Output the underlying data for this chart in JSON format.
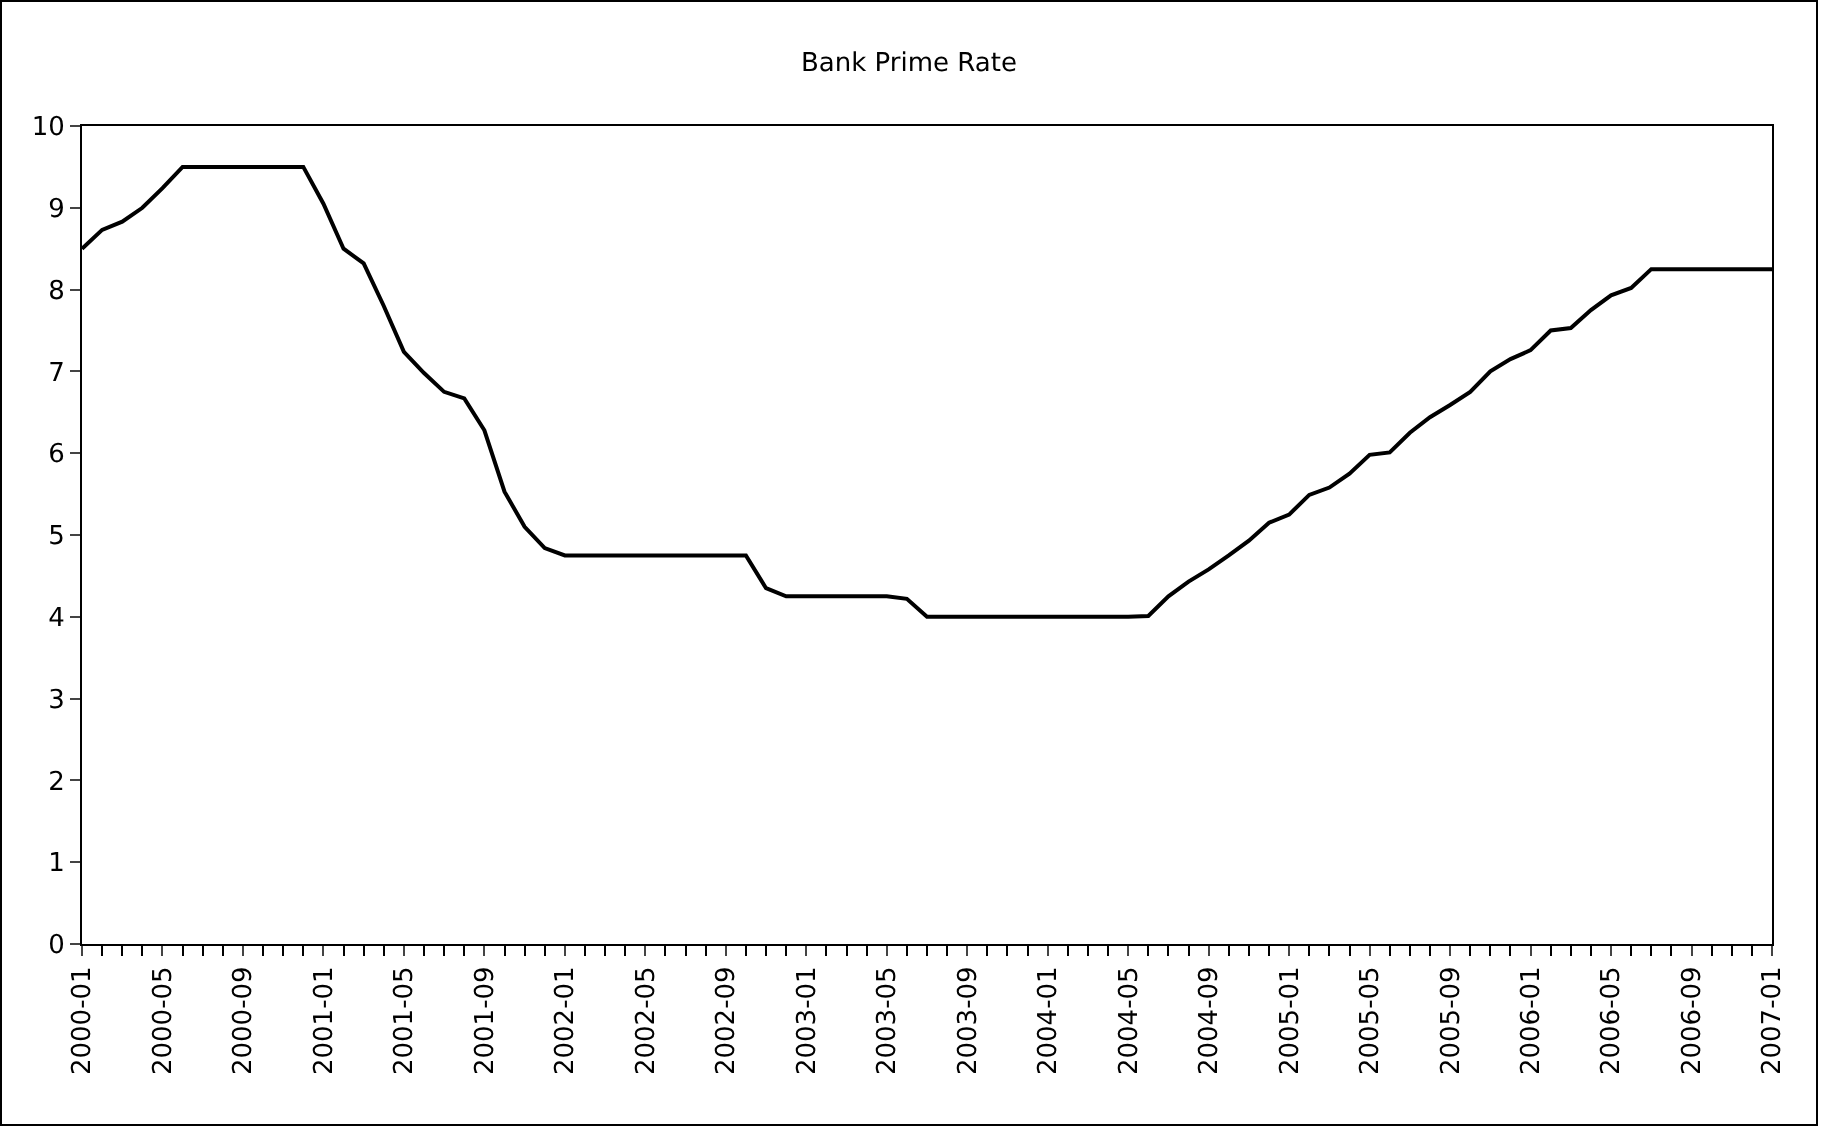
{
  "chart_data": {
    "type": "line",
    "title": "Bank Prime Rate",
    "categories": [
      "2000-01",
      null,
      null,
      null,
      "2000-05",
      null,
      null,
      null,
      "2000-09",
      null,
      null,
      null,
      "2001-01",
      null,
      null,
      null,
      "2001-05",
      null,
      null,
      null,
      "2001-09",
      null,
      null,
      null,
      "2002-01",
      null,
      null,
      null,
      "2002-05",
      null,
      null,
      null,
      "2002-09",
      null,
      null,
      null,
      "2003-01",
      null,
      null,
      null,
      "2003-05",
      null,
      null,
      null,
      "2003-09",
      null,
      null,
      null,
      "2004-01",
      null,
      null,
      null,
      "2004-05",
      null,
      null,
      null,
      "2004-09",
      null,
      null,
      null,
      "2005-01",
      null,
      null,
      null,
      "2005-05",
      null,
      null,
      null,
      "2005-09",
      null,
      null,
      null,
      "2006-01",
      null,
      null,
      null,
      "2006-05",
      null,
      null,
      null,
      "2006-09",
      null,
      null,
      null,
      "2007-01"
    ],
    "series": [
      {
        "color": "#000000",
        "values": [
          8.5,
          8.73,
          8.83,
          9.0,
          9.24,
          9.5,
          9.5,
          9.5,
          9.5,
          9.5,
          9.5,
          9.5,
          9.05,
          8.5,
          8.32,
          7.8,
          7.24,
          6.98,
          6.75,
          6.67,
          6.28,
          5.53,
          5.1,
          4.84,
          4.75,
          4.75,
          4.75,
          4.75,
          4.75,
          4.75,
          4.75,
          4.75,
          4.75,
          4.75,
          4.35,
          4.25,
          4.25,
          4.25,
          4.25,
          4.25,
          4.25,
          4.22,
          4.0,
          4.0,
          4.0,
          4.0,
          4.0,
          4.0,
          4.0,
          4.0,
          4.0,
          4.0,
          4.0,
          4.01,
          4.25,
          4.43,
          4.58,
          4.75,
          4.93,
          5.15,
          5.25,
          5.49,
          5.58,
          5.75,
          5.98,
          6.01,
          6.25,
          6.44,
          6.59,
          6.75,
          7.0,
          7.15,
          7.26,
          7.5,
          7.53,
          7.75,
          7.93,
          8.02,
          8.25,
          8.25,
          8.25,
          8.25,
          8.25,
          8.25,
          8.25
        ]
      }
    ],
    "ylim": [
      0,
      10
    ],
    "yticks": [
      0,
      1,
      2,
      3,
      4,
      5,
      6,
      7,
      8,
      9,
      10
    ],
    "grid": false,
    "marker": "none",
    "line_style": "solid"
  }
}
